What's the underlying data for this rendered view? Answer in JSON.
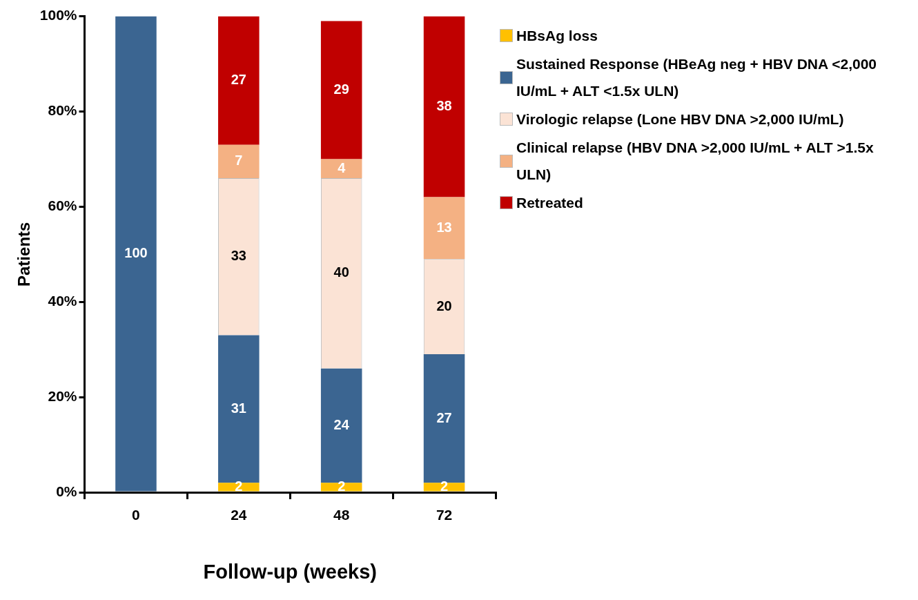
{
  "chart_data": {
    "type": "bar",
    "stacked": true,
    "xlabel": "Follow-up (weeks)",
    "ylabel": "Patients",
    "categories": [
      "0",
      "24",
      "48",
      "72"
    ],
    "series": [
      {
        "name": "HBsAg loss",
        "color": "#ffc000",
        "values": [
          null,
          2,
          2,
          2
        ]
      },
      {
        "name": "Sustained Response (HBeAg neg + HBV DNA <2,000 IU/mL + ALT <1.5x ULN)",
        "color": "#3b6591",
        "values": [
          100,
          31,
          24,
          27
        ]
      },
      {
        "name": "Virologic relapse (Lone HBV DNA >2,000 IU/mL)",
        "color": "#fbe3d5",
        "values": [
          null,
          33,
          40,
          20
        ]
      },
      {
        "name": "Clinical relapse (HBV DNA >2,000 IU/mL + ALT >1.5x ULN)",
        "color": "#f4b183",
        "values": [
          null,
          7,
          4,
          13
        ]
      },
      {
        "name": "Retreated",
        "color": "#c00000",
        "values": [
          null,
          27,
          29,
          38
        ]
      }
    ],
    "ylim": [
      0,
      100
    ],
    "yticks": [
      {
        "value": 0,
        "label": "0%"
      },
      {
        "value": 20,
        "label": "20%"
      },
      {
        "value": 40,
        "label": "40%"
      },
      {
        "value": 60,
        "label": "60%"
      },
      {
        "value": 80,
        "label": "80%"
      },
      {
        "value": 100,
        "label": "100%"
      }
    ],
    "grid": false,
    "legend": "right",
    "data_labels": true
  }
}
